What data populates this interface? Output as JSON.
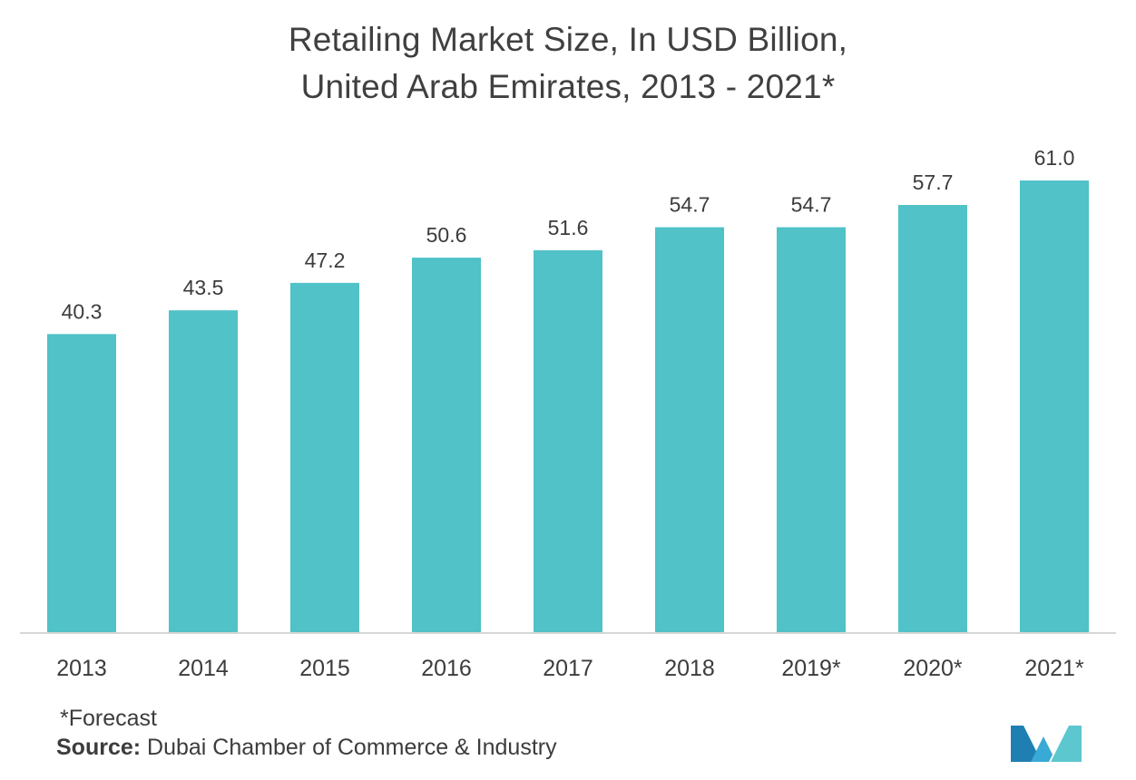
{
  "chart_data": {
    "type": "bar",
    "title": [
      "Retailing Market Size, In USD Billion,",
      "United Arab Emirates, 2013 - 2021*"
    ],
    "categories": [
      "2013",
      "2014",
      "2015",
      "2016",
      "2017",
      "2018",
      "2019*",
      "2020*",
      "2021*"
    ],
    "values": [
      40.3,
      43.5,
      47.2,
      50.6,
      51.6,
      54.7,
      54.7,
      57.7,
      61.0
    ],
    "value_labels": [
      "40.3",
      "43.5",
      "47.2",
      "50.6",
      "51.6",
      "54.7",
      "54.7",
      "57.7",
      "61.0"
    ],
    "xlabel": "",
    "ylabel": "",
    "ylim": [
      0,
      61.0
    ],
    "grid": false,
    "legend": "none",
    "bar_color": "#50c2c8"
  },
  "footnote": "*Forecast",
  "source": {
    "label": "Source:",
    "text": " Dubai Chamber of Commerce & Industry"
  },
  "logo": {
    "icon": "mordor-intelligence-logo-icon",
    "colors": [
      "#1f7fb3",
      "#39a9d6",
      "#5dc7cf"
    ]
  }
}
